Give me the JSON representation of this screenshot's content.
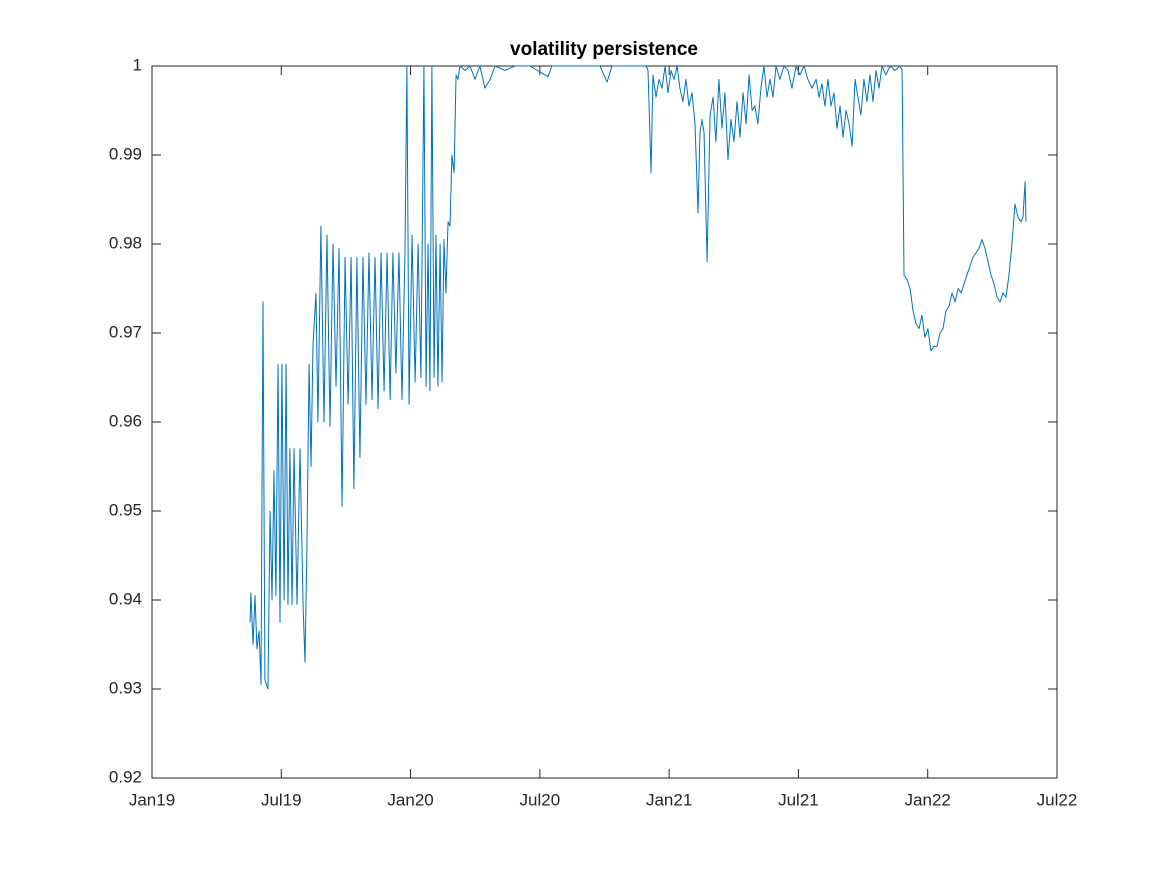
{
  "chart_data": {
    "type": "line",
    "title": "volatility persistence",
    "color": "#0072bd",
    "xlim": [
      0,
      42
    ],
    "xticks": [
      {
        "value": 0,
        "label": "Jan19"
      },
      {
        "value": 6,
        "label": "Jul19"
      },
      {
        "value": 12,
        "label": "Jan20"
      },
      {
        "value": 18,
        "label": "Jul20"
      },
      {
        "value": 24,
        "label": "Jan21"
      },
      {
        "value": 30,
        "label": "Jul21"
      },
      {
        "value": 36,
        "label": "Jan22"
      },
      {
        "value": 42,
        "label": "Jul22"
      }
    ],
    "ylim": [
      0.92,
      1
    ],
    "yticks": [
      0.92,
      0.93,
      0.94,
      0.95,
      0.96,
      0.97,
      0.98,
      0.99,
      1
    ],
    "x": [
      4.55,
      4.59,
      4.69,
      4.78,
      4.87,
      4.97,
      5.06,
      5.15,
      5.24,
      5.38,
      5.48,
      5.57,
      5.66,
      5.75,
      5.85,
      5.94,
      6.03,
      6.13,
      6.22,
      6.31,
      6.4,
      6.5,
      6.59,
      6.73,
      6.87,
      7.01,
      7.1,
      7.19,
      7.29,
      7.38,
      7.47,
      7.61,
      7.7,
      7.84,
      7.98,
      8.12,
      8.26,
      8.4,
      8.54,
      8.68,
      8.82,
      8.96,
      9.1,
      9.24,
      9.37,
      9.51,
      9.65,
      9.79,
      9.93,
      10.07,
      10.21,
      10.35,
      10.49,
      10.63,
      10.77,
      10.91,
      11.05,
      11.18,
      11.32,
      11.46,
      11.6,
      11.74,
      11.83,
      11.93,
      12.07,
      12.21,
      12.35,
      12.48,
      12.62,
      12.72,
      12.81,
      12.9,
      12.99,
      13.09,
      13.18,
      13.27,
      13.37,
      13.46,
      13.55,
      13.64,
      13.74,
      13.83,
      13.92,
      14.02,
      14.11,
      14.2,
      14.29,
      14.53,
      14.76,
      14.99,
      15.22,
      15.45,
      15.69,
      15.92,
      16.38,
      16.85,
      17.54,
      18.38,
      18.56,
      20.79,
      21.12,
      21.35,
      22.93,
      23.02,
      23.16,
      23.25,
      23.39,
      23.53,
      23.67,
      23.81,
      23.95,
      24.09,
      24.23,
      24.37,
      24.5,
      24.64,
      24.78,
      24.92,
      25.06,
      25.2,
      25.34,
      25.43,
      25.53,
      25.62,
      25.76,
      25.9,
      26.04,
      26.17,
      26.31,
      26.45,
      26.59,
      26.73,
      26.87,
      27.01,
      27.15,
      27.29,
      27.43,
      27.57,
      27.71,
      27.85,
      27.98,
      28.12,
      28.26,
      28.4,
      28.54,
      28.68,
      28.82,
      28.96,
      29.14,
      29.33,
      29.52,
      29.7,
      29.89,
      30.07,
      30.26,
      30.44,
      30.63,
      30.82,
      30.96,
      31.09,
      31.23,
      31.37,
      31.51,
      31.65,
      31.79,
      31.93,
      32.07,
      32.21,
      32.35,
      32.49,
      32.63,
      32.76,
      32.9,
      33.04,
      33.18,
      33.32,
      33.46,
      33.6,
      33.74,
      33.88,
      34.06,
      34.25,
      34.48,
      34.71,
      34.81,
      34.9,
      35.04,
      35.18,
      35.32,
      35.46,
      35.6,
      35.73,
      35.87,
      36.01,
      36.15,
      36.29,
      36.43,
      36.57,
      36.71,
      36.85,
      36.99,
      37.13,
      37.27,
      37.41,
      37.55,
      37.68,
      37.82,
      37.96,
      38.1,
      38.24,
      38.38,
      38.52,
      38.66,
      38.8,
      38.94,
      39.08,
      39.22,
      39.36,
      39.49,
      39.63,
      39.77,
      39.91,
      40.05,
      40.19,
      40.33,
      40.42,
      40.52,
      40.56
    ],
    "values": [
      0.9375,
      0.9408,
      0.935,
      0.9405,
      0.9345,
      0.9365,
      0.9305,
      0.9735,
      0.931,
      0.93,
      0.95,
      0.94,
      0.9545,
      0.9405,
      0.9665,
      0.9375,
      0.9665,
      0.94,
      0.9665,
      0.9395,
      0.957,
      0.9395,
      0.957,
      0.9395,
      0.957,
      0.9395,
      0.933,
      0.946,
      0.9665,
      0.955,
      0.9685,
      0.9745,
      0.96,
      0.982,
      0.96,
      0.981,
      0.9595,
      0.98,
      0.964,
      0.9795,
      0.9505,
      0.9785,
      0.962,
      0.9785,
      0.9525,
      0.9785,
      0.956,
      0.9785,
      0.962,
      0.979,
      0.9625,
      0.9785,
      0.9615,
      0.979,
      0.9635,
      0.979,
      0.9625,
      0.979,
      0.9655,
      0.979,
      0.9625,
      0.979,
      1.0,
      0.962,
      0.981,
      0.9645,
      0.98,
      0.965,
      1.0,
      0.964,
      0.98,
      0.9635,
      1.0,
      0.965,
      0.981,
      0.964,
      0.98,
      0.9645,
      0.9805,
      0.9745,
      0.9825,
      0.982,
      0.99,
      0.988,
      0.999,
      0.9985,
      1.0,
      0.9995,
      1.0,
      0.9985,
      1.0,
      0.9975,
      0.9985,
      1.0,
      0.9995,
      1.0,
      1.0,
      0.9988,
      1.0,
      1.0,
      0.9982,
      1.0,
      1.0,
      0.9995,
      0.988,
      0.999,
      0.9965,
      0.9985,
      0.9975,
      1.0,
      0.997,
      0.9995,
      0.9985,
      1.0,
      0.9975,
      0.996,
      0.9985,
      0.9955,
      0.997,
      0.9935,
      0.9835,
      0.9925,
      0.994,
      0.9925,
      0.978,
      0.9945,
      0.9965,
      0.9915,
      0.9985,
      0.993,
      0.997,
      0.9895,
      0.994,
      0.9915,
      0.996,
      0.992,
      0.997,
      0.9935,
      0.999,
      0.995,
      0.9955,
      0.9935,
      0.9975,
      1.0,
      0.9965,
      0.9985,
      0.9965,
      1.0,
      0.9985,
      1.0,
      0.9995,
      0.9975,
      1.0,
      0.999,
      1.0,
      0.9985,
      0.9975,
      0.9985,
      0.9965,
      0.998,
      0.9955,
      0.9985,
      0.9955,
      0.997,
      0.993,
      0.9955,
      0.992,
      0.995,
      0.9935,
      0.991,
      0.9985,
      0.9965,
      0.9945,
      0.9985,
      0.996,
      0.999,
      0.996,
      0.9995,
      0.9975,
      1.0,
      0.999,
      1.0,
      0.9995,
      1.0,
      0.9995,
      0.9765,
      0.976,
      0.975,
      0.9725,
      0.971,
      0.9705,
      0.972,
      0.9695,
      0.9705,
      0.968,
      0.9685,
      0.9685,
      0.97,
      0.9705,
      0.9725,
      0.973,
      0.9745,
      0.9735,
      0.975,
      0.9745,
      0.9755,
      0.9765,
      0.9775,
      0.9785,
      0.979,
      0.9795,
      0.9805,
      0.9795,
      0.978,
      0.9765,
      0.9755,
      0.974,
      0.9735,
      0.9745,
      0.974,
      0.9765,
      0.98,
      0.9845,
      0.983,
      0.9825,
      0.983,
      0.987,
      0.9825
    ]
  }
}
